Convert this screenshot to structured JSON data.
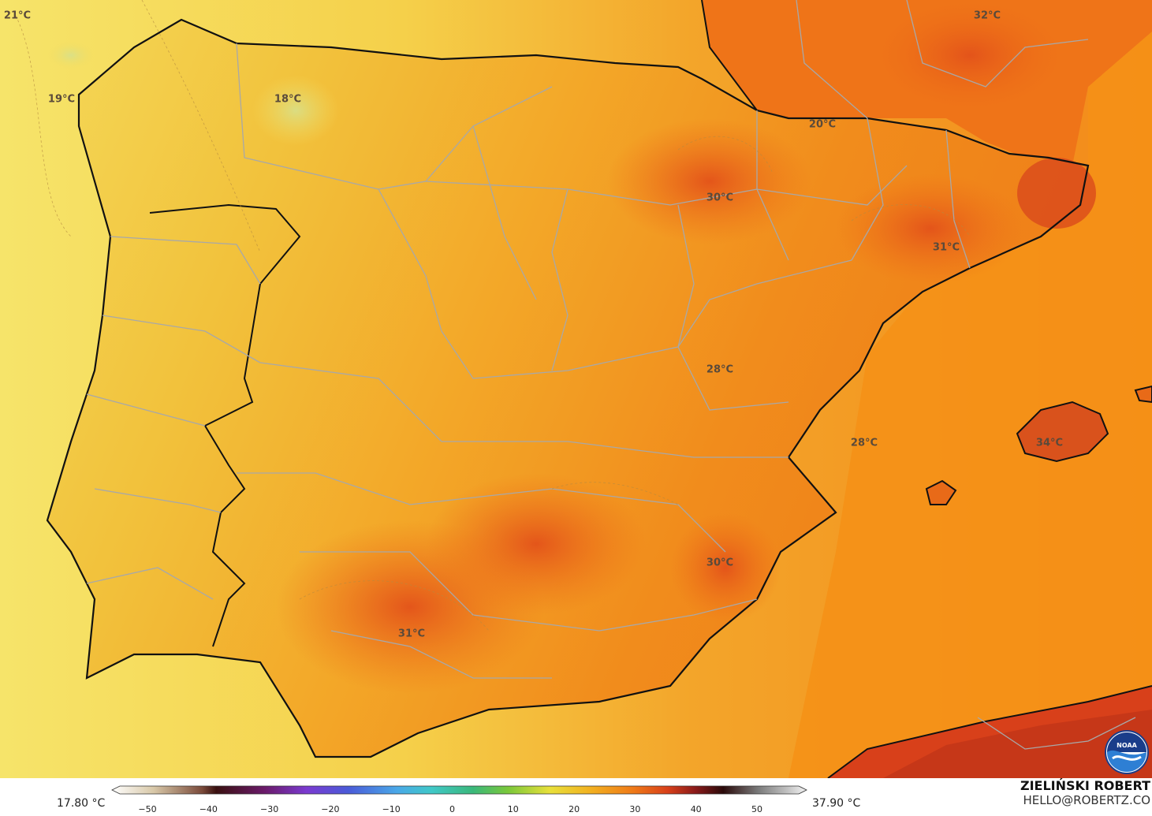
{
  "map": {
    "labels": [
      {
        "text": "21°C"
      },
      {
        "text": "19°C"
      },
      {
        "text": "18°C"
      },
      {
        "text": "20°C"
      },
      {
        "text": "32°C"
      },
      {
        "text": "30°C"
      },
      {
        "text": "31°C"
      },
      {
        "text": "28°C"
      },
      {
        "text": "28°C"
      },
      {
        "text": "34°C"
      },
      {
        "text": "30°C"
      },
      {
        "text": "31°C"
      }
    ]
  },
  "legend": {
    "min_label": "17.80 °C",
    "max_label": "37.90 °C",
    "ticks": [
      "−50",
      "−40",
      "−30",
      "−20",
      "−10",
      "0",
      "10",
      "20",
      "30",
      "40",
      "50"
    ]
  },
  "credit": {
    "author": "ZIELIŃSKI ROBERT",
    "email": "HELLO@ROBERTZ.CO",
    "logo_text": "NOAA"
  },
  "colors": {
    "sea_warm": "#f59a1c",
    "sea_cool": "#f5d84a",
    "land_yellow": "#f2c640",
    "land_orange": "#f28a1a",
    "hot": "#ec5a14",
    "very_hot": "#d8401a",
    "coast": "#111111",
    "borders": "#9a9a9a"
  }
}
